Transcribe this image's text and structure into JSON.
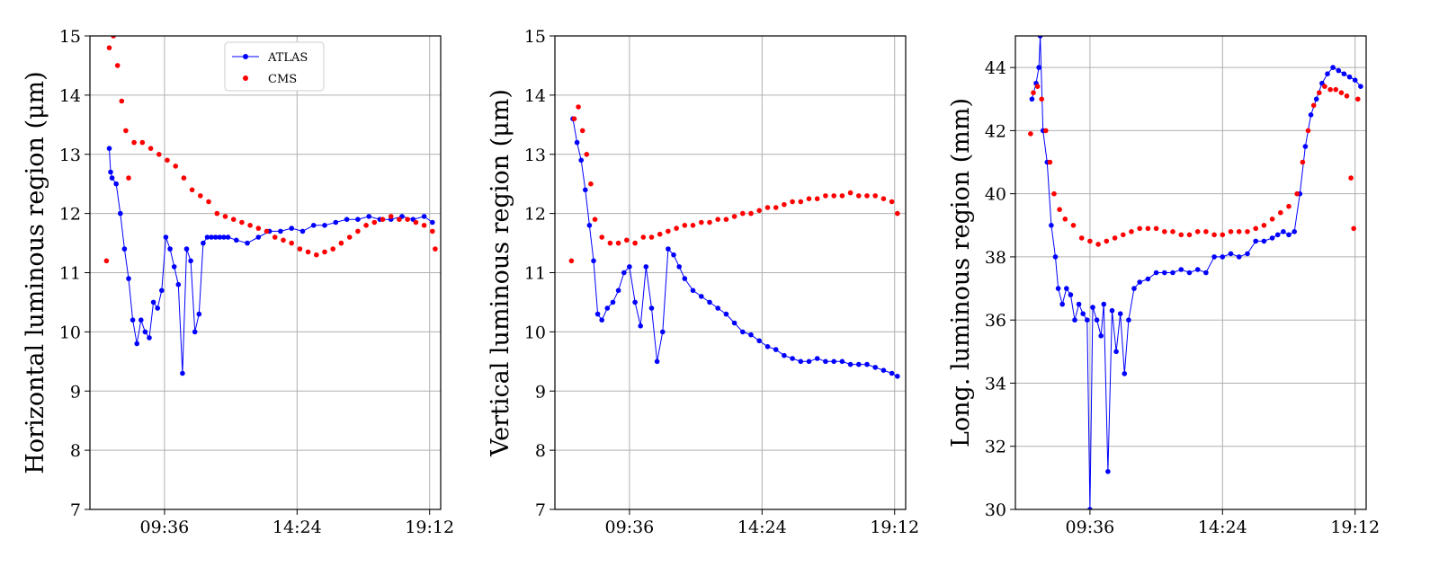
{
  "chart_data": [
    {
      "type": "line",
      "ylabel": "Horizontal luminous region (μm)",
      "xlabel": "",
      "x_ticks": [
        "09:36",
        "14:24",
        "19:12"
      ],
      "x_tick_hours": [
        9.6,
        14.4,
        19.2
      ],
      "xlim_hours": [
        6.9,
        19.6
      ],
      "ylim": [
        7,
        15
      ],
      "y_ticks": [
        7,
        8,
        9,
        10,
        11,
        12,
        13,
        14,
        15
      ],
      "grid": true,
      "legend": {
        "placement": "top-center",
        "entries": [
          "ATLAS",
          "CMS"
        ]
      },
      "series": [
        {
          "name": "ATLAS",
          "style": "line-markers",
          "color": "#0000ff",
          "x_hours": [
            7.6,
            7.65,
            7.7,
            7.85,
            8.0,
            8.15,
            8.3,
            8.45,
            8.6,
            8.75,
            8.9,
            9.05,
            9.2,
            9.35,
            9.5,
            9.65,
            9.8,
            9.95,
            10.1,
            10.25,
            10.4,
            10.55,
            10.7,
            10.85,
            11.0,
            11.15,
            11.3,
            11.45,
            11.6,
            11.75,
            11.9,
            12.2,
            12.6,
            13.0,
            13.4,
            13.8,
            14.2,
            14.6,
            15.0,
            15.4,
            15.8,
            16.2,
            16.6,
            17.0,
            17.4,
            17.8,
            18.2,
            18.6,
            19.0,
            19.3
          ],
          "values": [
            13.1,
            12.7,
            12.6,
            12.5,
            12.0,
            11.4,
            10.9,
            10.2,
            9.8,
            10.2,
            10.0,
            9.9,
            10.5,
            10.4,
            10.7,
            11.6,
            11.4,
            11.1,
            10.8,
            9.3,
            11.4,
            11.2,
            10.0,
            10.3,
            11.5,
            11.6,
            11.6,
            11.6,
            11.6,
            11.6,
            11.6,
            11.55,
            11.5,
            11.6,
            11.7,
            11.7,
            11.75,
            11.7,
            11.8,
            11.8,
            11.85,
            11.9,
            11.9,
            11.95,
            11.9,
            11.9,
            11.95,
            11.9,
            11.95,
            11.85
          ]
        },
        {
          "name": "CMS",
          "style": "markers",
          "color": "#ff0000",
          "x_hours": [
            7.5,
            7.6,
            7.75,
            7.9,
            8.05,
            8.2,
            8.3,
            8.5,
            8.8,
            9.1,
            9.4,
            9.7,
            10.0,
            10.3,
            10.6,
            10.9,
            11.2,
            11.5,
            11.8,
            12.1,
            12.4,
            12.7,
            13.0,
            13.3,
            13.6,
            13.9,
            14.2,
            14.5,
            14.8,
            15.1,
            15.4,
            15.7,
            16.0,
            16.3,
            16.6,
            16.9,
            17.2,
            17.5,
            17.8,
            18.1,
            18.4,
            18.7,
            19.0,
            19.3,
            19.4
          ],
          "values": [
            11.2,
            14.8,
            15.0,
            14.5,
            13.9,
            13.4,
            12.6,
            13.2,
            13.2,
            13.1,
            13.0,
            12.9,
            12.8,
            12.6,
            12.4,
            12.3,
            12.2,
            12.0,
            11.95,
            11.9,
            11.85,
            11.8,
            11.75,
            11.7,
            11.6,
            11.55,
            11.5,
            11.4,
            11.35,
            11.3,
            11.35,
            11.4,
            11.5,
            11.6,
            11.7,
            11.8,
            11.85,
            11.9,
            11.95,
            11.9,
            11.9,
            11.85,
            11.8,
            11.7,
            11.4
          ]
        }
      ]
    },
    {
      "type": "line",
      "ylabel": "Vertical luminous region (μm)",
      "xlabel": "",
      "x_ticks": [
        "09:36",
        "14:24",
        "19:12"
      ],
      "x_tick_hours": [
        9.6,
        14.4,
        19.2
      ],
      "xlim_hours": [
        6.9,
        19.6
      ],
      "ylim": [
        7,
        15
      ],
      "y_ticks": [
        7,
        8,
        9,
        10,
        11,
        12,
        13,
        14,
        15
      ],
      "grid": true,
      "series": [
        {
          "name": "ATLAS",
          "style": "line-markers",
          "color": "#0000ff",
          "x_hours": [
            7.55,
            7.7,
            7.85,
            8.0,
            8.15,
            8.3,
            8.45,
            8.6,
            8.8,
            9.0,
            9.2,
            9.4,
            9.6,
            9.8,
            10.0,
            10.2,
            10.4,
            10.6,
            10.8,
            11.0,
            11.2,
            11.4,
            11.6,
            11.9,
            12.2,
            12.5,
            12.8,
            13.1,
            13.4,
            13.7,
            14.0,
            14.3,
            14.6,
            14.9,
            15.2,
            15.5,
            15.8,
            16.1,
            16.4,
            16.7,
            17.0,
            17.3,
            17.6,
            17.9,
            18.2,
            18.5,
            18.8,
            19.1,
            19.3
          ],
          "values": [
            13.6,
            13.2,
            12.9,
            12.4,
            11.8,
            11.2,
            10.3,
            10.2,
            10.4,
            10.5,
            10.7,
            11.0,
            11.1,
            10.5,
            10.1,
            11.1,
            10.4,
            9.5,
            10.0,
            11.4,
            11.3,
            11.1,
            10.9,
            10.7,
            10.6,
            10.5,
            10.4,
            10.3,
            10.15,
            10.0,
            9.95,
            9.85,
            9.75,
            9.7,
            9.6,
            9.55,
            9.5,
            9.5,
            9.55,
            9.5,
            9.5,
            9.5,
            9.45,
            9.45,
            9.45,
            9.4,
            9.35,
            9.3,
            9.25
          ]
        },
        {
          "name": "CMS",
          "style": "markers",
          "color": "#ff0000",
          "x_hours": [
            7.5,
            7.6,
            7.75,
            7.9,
            8.05,
            8.2,
            8.35,
            8.6,
            8.9,
            9.2,
            9.5,
            9.8,
            10.1,
            10.4,
            10.7,
            11.0,
            11.3,
            11.6,
            11.9,
            12.2,
            12.5,
            12.8,
            13.1,
            13.4,
            13.7,
            14.0,
            14.3,
            14.6,
            14.9,
            15.2,
            15.5,
            15.8,
            16.1,
            16.4,
            16.7,
            17.0,
            17.3,
            17.6,
            17.9,
            18.2,
            18.5,
            18.8,
            19.1,
            19.3
          ],
          "values": [
            11.2,
            13.6,
            13.8,
            13.4,
            13.0,
            12.5,
            11.9,
            11.6,
            11.5,
            11.5,
            11.55,
            11.5,
            11.6,
            11.6,
            11.65,
            11.7,
            11.75,
            11.8,
            11.8,
            11.85,
            11.85,
            11.9,
            11.9,
            11.95,
            12.0,
            12.0,
            12.05,
            12.1,
            12.1,
            12.15,
            12.2,
            12.2,
            12.25,
            12.25,
            12.3,
            12.3,
            12.3,
            12.35,
            12.3,
            12.3,
            12.3,
            12.25,
            12.2,
            12.0
          ]
        }
      ]
    },
    {
      "type": "line",
      "ylabel": "Long. luminous region (mm)",
      "xlabel": "",
      "x_ticks": [
        "09:36",
        "14:24",
        "19:12"
      ],
      "x_tick_hours": [
        9.6,
        14.4,
        19.2
      ],
      "xlim_hours": [
        6.9,
        19.6
      ],
      "ylim": [
        30,
        45
      ],
      "y_ticks": [
        30,
        32,
        34,
        36,
        38,
        40,
        42,
        44
      ],
      "grid": true,
      "series": [
        {
          "name": "ATLAS",
          "style": "line-markers",
          "color": "#0000ff",
          "x_hours": [
            7.5,
            7.65,
            7.75,
            7.8,
            7.9,
            8.05,
            8.2,
            8.35,
            8.45,
            8.6,
            8.75,
            8.9,
            9.05,
            9.2,
            9.35,
            9.5,
            9.6,
            9.7,
            9.85,
            10.0,
            10.1,
            10.25,
            10.4,
            10.55,
            10.7,
            10.85,
            11.0,
            11.2,
            11.4,
            11.7,
            12.0,
            12.3,
            12.6,
            12.9,
            13.2,
            13.5,
            13.8,
            14.1,
            14.4,
            14.7,
            15.0,
            15.3,
            15.6,
            15.9,
            16.2,
            16.4,
            16.6,
            16.8,
            17.0,
            17.2,
            17.4,
            17.6,
            17.8,
            18.0,
            18.2,
            18.4,
            18.6,
            18.8,
            19.0,
            19.2,
            19.4
          ],
          "values": [
            43.0,
            43.5,
            44.0,
            45.0,
            42.0,
            41.0,
            39.0,
            38.0,
            37.0,
            36.5,
            37.0,
            36.8,
            36.0,
            36.5,
            36.2,
            36.0,
            30.0,
            36.4,
            36.0,
            35.5,
            36.5,
            31.2,
            36.3,
            35.0,
            36.2,
            34.3,
            36.0,
            37.0,
            37.2,
            37.3,
            37.5,
            37.5,
            37.5,
            37.6,
            37.5,
            37.6,
            37.5,
            38.0,
            38.0,
            38.1,
            38.0,
            38.1,
            38.5,
            38.5,
            38.6,
            38.7,
            38.8,
            38.7,
            38.8,
            40.0,
            41.5,
            42.5,
            43.0,
            43.5,
            43.8,
            44.0,
            43.9,
            43.8,
            43.7,
            43.6,
            43.4
          ]
        },
        {
          "name": "CMS",
          "style": "markers",
          "color": "#ff0000",
          "x_hours": [
            7.45,
            7.55,
            7.7,
            7.85,
            8.0,
            8.15,
            8.3,
            8.5,
            8.7,
            9.0,
            9.3,
            9.6,
            9.9,
            10.2,
            10.5,
            10.8,
            11.1,
            11.4,
            11.7,
            12.0,
            12.3,
            12.6,
            12.9,
            13.2,
            13.5,
            13.8,
            14.1,
            14.4,
            14.7,
            15.0,
            15.3,
            15.6,
            15.9,
            16.2,
            16.5,
            16.8,
            17.1,
            17.3,
            17.5,
            17.7,
            17.9,
            18.1,
            18.3,
            18.5,
            18.7,
            18.9,
            19.05,
            19.15,
            19.3
          ],
          "values": [
            41.9,
            43.2,
            43.4,
            43.0,
            42.0,
            41.0,
            40.0,
            39.5,
            39.2,
            39.0,
            38.6,
            38.5,
            38.4,
            38.5,
            38.6,
            38.7,
            38.8,
            38.9,
            38.9,
            38.9,
            38.8,
            38.8,
            38.7,
            38.7,
            38.8,
            38.8,
            38.7,
            38.7,
            38.8,
            38.8,
            38.8,
            38.9,
            39.0,
            39.2,
            39.4,
            39.6,
            40.0,
            41.0,
            42.0,
            42.8,
            43.2,
            43.4,
            43.3,
            43.3,
            43.2,
            43.1,
            40.5,
            38.9,
            43.0
          ]
        }
      ]
    }
  ]
}
